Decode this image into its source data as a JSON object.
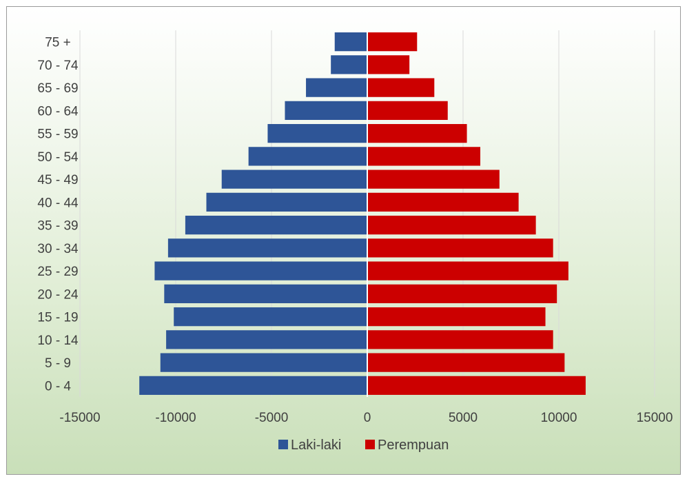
{
  "chart_data": {
    "type": "bar",
    "orientation": "horizontal",
    "categories": [
      "0 - 4",
      "5 - 9",
      "10 - 14",
      "15 - 19",
      "20 - 24",
      "25 - 29",
      "30 - 34",
      "35 - 39",
      "40 - 44",
      "45 - 49",
      "50 - 54",
      "55 - 59",
      "60 - 64",
      "65 - 69",
      "70 - 74",
      "75 +"
    ],
    "series": [
      {
        "name": "Laki-laki",
        "color": "#2e5597",
        "values": [
          -11900,
          -10800,
          -10500,
          -10100,
          -10600,
          -11100,
          -10400,
          -9500,
          -8400,
          -7600,
          -6200,
          -5200,
          -4300,
          -3200,
          -1900,
          -1700
        ]
      },
      {
        "name": "Perempuan",
        "color": "#cc0000",
        "values": [
          11400,
          10300,
          9700,
          9300,
          9900,
          10500,
          9700,
          8800,
          7900,
          6900,
          5900,
          5200,
          4200,
          3500,
          2200,
          2600
        ]
      }
    ],
    "xlim": [
      -15000,
      15000
    ],
    "xticks": [
      "-15000",
      "-10000",
      "-5000",
      "0",
      "5000",
      "10000",
      "15000"
    ],
    "grid": "vertical",
    "legend": "bottom",
    "title": "",
    "xlabel": "",
    "ylabel": ""
  }
}
